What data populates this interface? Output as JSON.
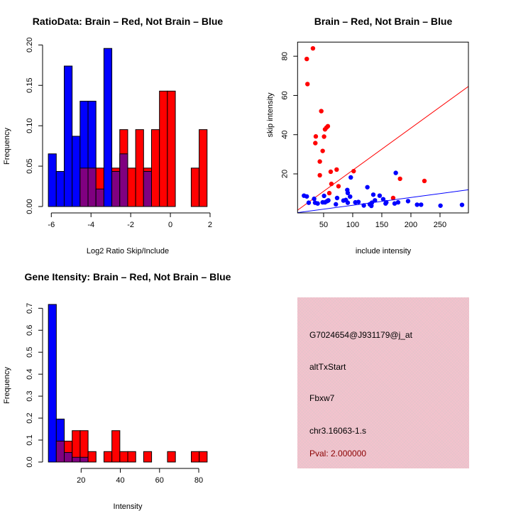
{
  "chart_data": [
    {
      "type": "bar",
      "title": "RatioData: Brain – Red, Not Brain – Blue",
      "xlabel": "Log2 Ratio Skip/Include",
      "ylabel": "Frequency",
      "xlim": [
        -6.15,
        1.85
      ],
      "ylim": [
        0,
        0.2
      ],
      "bin_start": -6.15,
      "bin_width": 0.4,
      "xticks": [
        -6,
        -4,
        -2,
        0,
        2
      ],
      "yticks": [
        0.0,
        0.05,
        0.1,
        0.15,
        0.2
      ],
      "ytick_labels": [
        "0.00",
        "0.05",
        "0.10",
        "0.15",
        "0.20"
      ],
      "series": [
        {
          "name": "Brain",
          "color": "#ff0000",
          "values": [
            0,
            0,
            0,
            0,
            0.0476,
            0.0476,
            0.0476,
            0,
            0.0476,
            0.0952,
            0.0476,
            0.0952,
            0.0476,
            0.0952,
            0.1429,
            0.1429,
            0,
            0,
            0.0476,
            0.0952
          ]
        },
        {
          "name": "Not Brain",
          "color": "#0000ff",
          "values": [
            0.0652,
            0.0435,
            0.1739,
            0.087,
            0.1304,
            0.1304,
            0.0217,
            0.1957,
            0.0435,
            0.0652,
            0,
            0,
            0.0435,
            0,
            0,
            0,
            0,
            0,
            0,
            0
          ]
        }
      ],
      "overlap_color": "#800080"
    },
    {
      "type": "scatter",
      "title": "Brain – Red, Not Brain – Blue",
      "xlabel": "include intensity",
      "ylabel": "skip intensity",
      "xlim": [
        5.3,
        298.8
      ],
      "ylim": [
        0.1,
        87.2
      ],
      "xticks": [
        50,
        100,
        150,
        200,
        250
      ],
      "yticks": [
        20,
        40,
        60,
        80
      ],
      "series": [
        {
          "name": "Brain",
          "color": "#ff0000",
          "points": [
            [
              31.7,
              84.0
            ],
            [
              21.1,
              78.6
            ],
            [
              22.3,
              65.8
            ],
            [
              46.0,
              52.0
            ],
            [
              57.3,
              44.3
            ],
            [
              54.9,
              43.6
            ],
            [
              52.4,
              42.7
            ],
            [
              50.8,
              39.0
            ],
            [
              36.6,
              39.1
            ],
            [
              35.8,
              35.7
            ],
            [
              48.4,
              31.7
            ],
            [
              43.5,
              26.3
            ],
            [
              43.5,
              19.3
            ],
            [
              62.2,
              21.1
            ],
            [
              72.4,
              22.2
            ],
            [
              101.6,
              21.4
            ],
            [
              63.4,
              14.9
            ],
            [
              75.6,
              13.7
            ],
            [
              59.8,
              10.2
            ],
            [
              169.5,
              7.7
            ],
            [
              181.3,
              17.5
            ],
            [
              223.2,
              16.4
            ]
          ],
          "fit": {
            "intercept": 0.36,
            "slope": 0.215
          }
        },
        {
          "name": "Not Brain",
          "color": "#0000ff",
          "points": [
            [
              16.3,
              8.9
            ],
            [
              21.1,
              8.5
            ],
            [
              24.4,
              5.3
            ],
            [
              33.7,
              7.3
            ],
            [
              35.4,
              5.3
            ],
            [
              39.8,
              4.9
            ],
            [
              48.4,
              5.5
            ],
            [
              50.8,
              8.8
            ],
            [
              52.4,
              5.5
            ],
            [
              56.1,
              6.1
            ],
            [
              58.1,
              6.5
            ],
            [
              71.1,
              4.5
            ],
            [
              73.2,
              7.7
            ],
            [
              84.1,
              6.4
            ],
            [
              88.2,
              6.7
            ],
            [
              91.5,
              5.3
            ],
            [
              90.7,
              11.8
            ],
            [
              91.5,
              10.3
            ],
            [
              95.5,
              8.4
            ],
            [
              96.7,
              18.2
            ],
            [
              104.5,
              5.5
            ],
            [
              109.8,
              5.7
            ],
            [
              119.1,
              3.9
            ],
            [
              125.2,
              13.2
            ],
            [
              129.3,
              4.5
            ],
            [
              132.1,
              3.7
            ],
            [
              132.9,
              5.3
            ],
            [
              135.4,
              9.4
            ],
            [
              138.2,
              6.5
            ],
            [
              146.3,
              8.9
            ],
            [
              152.4,
              7.1
            ],
            [
              156.5,
              4.9
            ],
            [
              157.7,
              5.5
            ],
            [
              172,
              4.9
            ],
            [
              174,
              20.5
            ],
            [
              178,
              5.5
            ],
            [
              195.1,
              6.1
            ],
            [
              210.6,
              4.3
            ],
            [
              217.5,
              4.3
            ],
            [
              250.8,
              3.8
            ],
            [
              287.8,
              4.2
            ]
          ],
          "fit": {
            "intercept": 0.04,
            "slope": 0.0397
          }
        }
      ]
    },
    {
      "type": "bar",
      "title": "Gene Itensity: Brain – Red, Not Brain – Blue",
      "xlabel": "Intensity",
      "ylabel": "Frequency",
      "xlim": [
        3.3,
        84.3
      ],
      "ylim": [
        0,
        0.7
      ],
      "bin_start": 3.3,
      "bin_width": 4.05,
      "xticks": [
        20,
        40,
        60,
        80
      ],
      "yticks": [
        0,
        0.1,
        0.2,
        0.3,
        0.4,
        0.5,
        0.6,
        0.7
      ],
      "ytick_labels": [
        "0.0",
        "0.1",
        "0.2",
        "0.3",
        "0.4",
        "0.5",
        "0.6",
        "0.7"
      ],
      "series": [
        {
          "name": "Brain",
          "color": "#ff0000",
          "values": [
            0,
            0.0952,
            0.0952,
            0.1429,
            0.1429,
            0.0476,
            0,
            0.0476,
            0.1429,
            0.0476,
            0.0476,
            0,
            0.0476,
            0,
            0,
            0.0476,
            0,
            0,
            0.0476,
            0.0476
          ]
        },
        {
          "name": "Not Brain",
          "color": "#0000ff",
          "values": [
            0.7174,
            0.1957,
            0.0435,
            0.0217,
            0.0217,
            0,
            0,
            0,
            0,
            0,
            0,
            0,
            0,
            0,
            0,
            0,
            0,
            0,
            0,
            0
          ]
        }
      ],
      "overlap_color": "#800080"
    }
  ],
  "info": {
    "probe_id": "G7024654@J931179@j_at",
    "event_type": "altTxStart",
    "gene": "Fbxw7",
    "location": "chr3.16063-1.s",
    "pval": "Pval: 2.000000"
  }
}
